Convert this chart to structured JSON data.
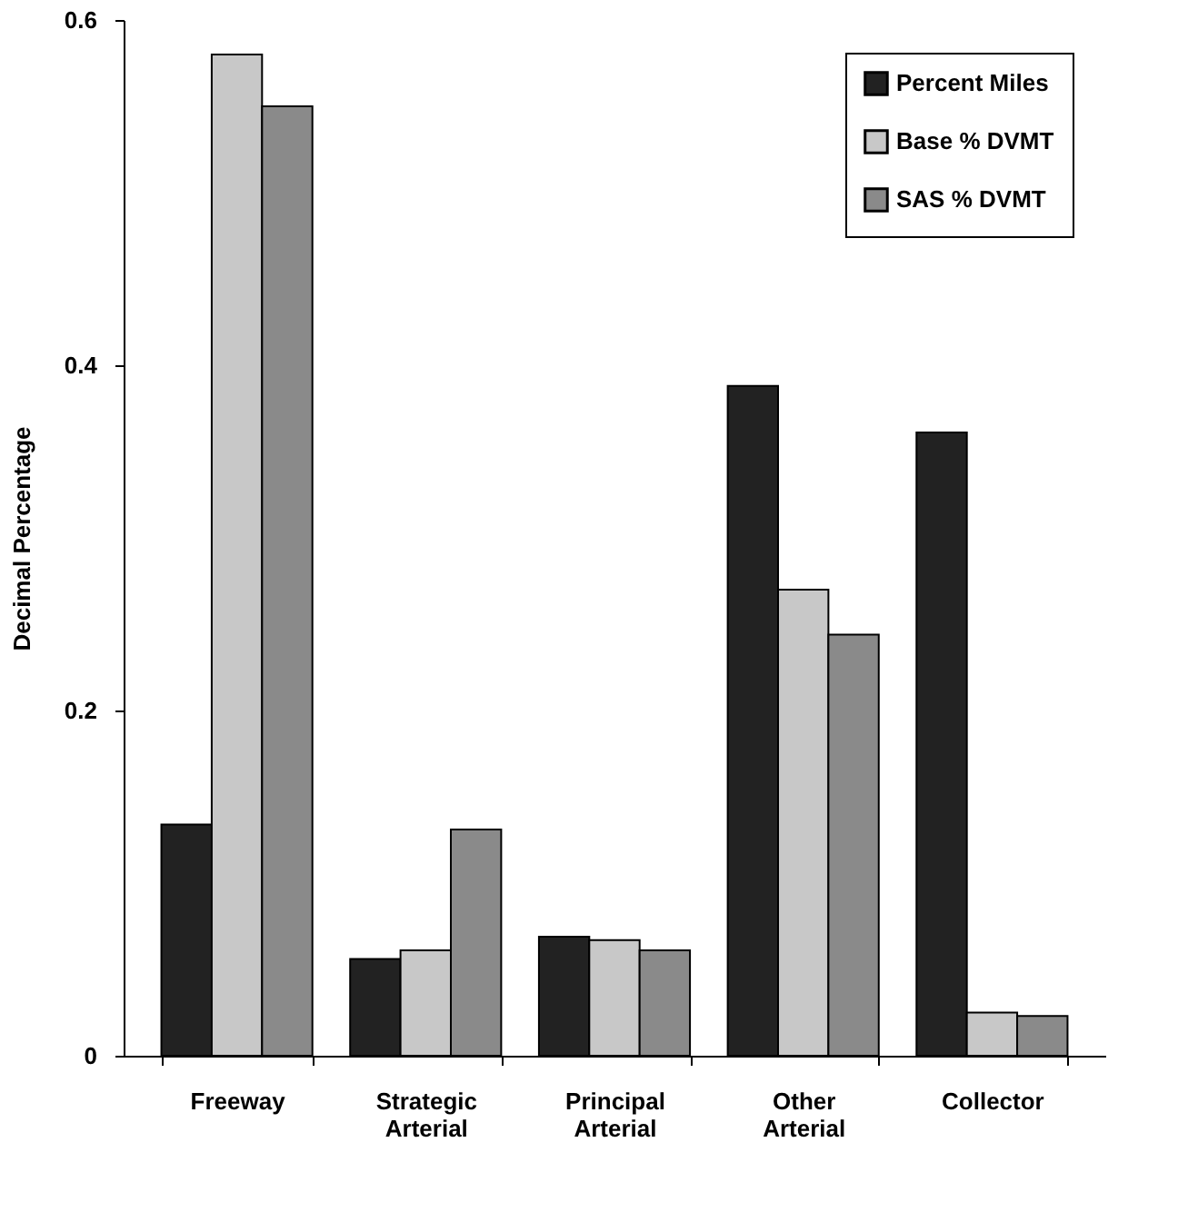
{
  "chart_data": {
    "type": "bar",
    "ylabel": "Decimal  Percentage",
    "categories": [
      "Freeway",
      "Strategic Arterial",
      "Principal Arterial",
      "Other Arterial",
      "Collector"
    ],
    "series": [
      {
        "name": "Percent Miles",
        "color": "#222222",
        "values": [
          0.134,
          0.056,
          0.069,
          0.388,
          0.361
        ]
      },
      {
        "name": "Base % DVMT",
        "color": "#c8c8c8",
        "values": [
          0.58,
          0.061,
          0.067,
          0.27,
          0.025
        ]
      },
      {
        "name": "SAS % DVMT",
        "color": "#8a8a8a",
        "values": [
          0.55,
          0.131,
          0.061,
          0.244,
          0.023
        ]
      }
    ],
    "ylim": [
      0,
      0.6
    ],
    "yticks": [
      0,
      0.2,
      0.4,
      0.6
    ],
    "grid": false,
    "legend": "top right"
  }
}
